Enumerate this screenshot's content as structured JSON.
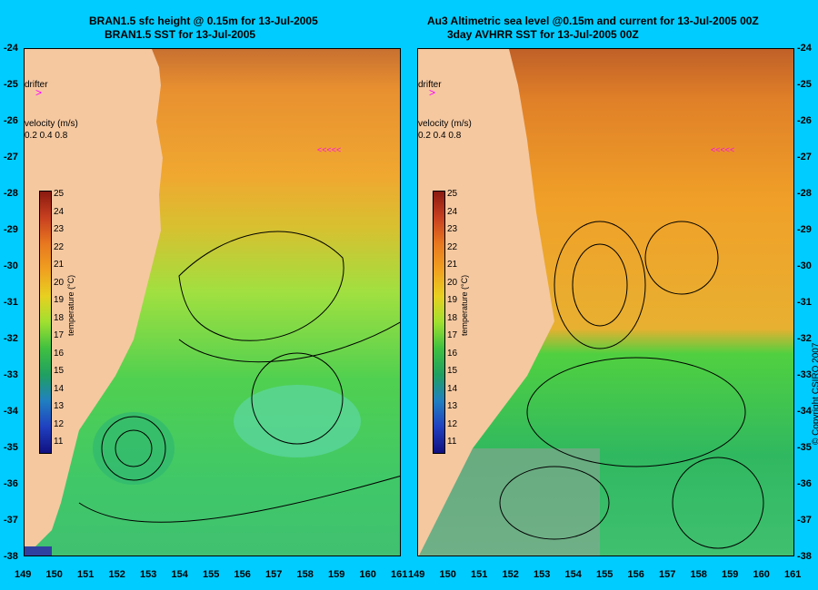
{
  "left_panel": {
    "title_line1": "BRAN1.5 sfc height @ 0.15m for 13-Jul-2005",
    "title_line2": "BRAN1.5 SST for 13-Jul-2005"
  },
  "right_panel": {
    "title_line1": "Au3 Altimetric sea level  @0.15m and current for 13-Jul-2005 00Z",
    "title_line2": "3day AVHRR SST for 13-Jul-2005 00Z"
  },
  "latitudes": [
    "-24",
    "-25",
    "-26",
    "-27",
    "-28",
    "-29",
    "-30",
    "-31",
    "-32",
    "-33",
    "-34",
    "-35",
    "-36",
    "-37",
    "-38"
  ],
  "longitudes_left": [
    "149",
    "150",
    "151",
    "152",
    "153",
    "154",
    "155",
    "156",
    "157",
    "158",
    "159",
    "160",
    "161"
  ],
  "longitudes_right": [
    "149",
    "150",
    "151",
    "152",
    "153",
    "154",
    "155",
    "156",
    "157",
    "158",
    "159",
    "160",
    "161"
  ],
  "drifter_label": "drifter",
  "velocity": {
    "label": "velocity (m/s)",
    "values": "0.2 0.4 0.8"
  },
  "colorbar": {
    "label": "temperature (°C)",
    "ticks": [
      "25",
      "24",
      "23",
      "22",
      "21",
      "20",
      "19",
      "18",
      "17",
      "16",
      "15",
      "14",
      "13",
      "12",
      "11"
    ]
  },
  "copyright": "© Copyright CSIRO 2007",
  "colors": {
    "background": "#00ccff",
    "land": "#f5c8a0",
    "warm": "#e8a030",
    "mid": "#80e040",
    "cool": "#30c070",
    "drifter": "#ff00ff"
  }
}
